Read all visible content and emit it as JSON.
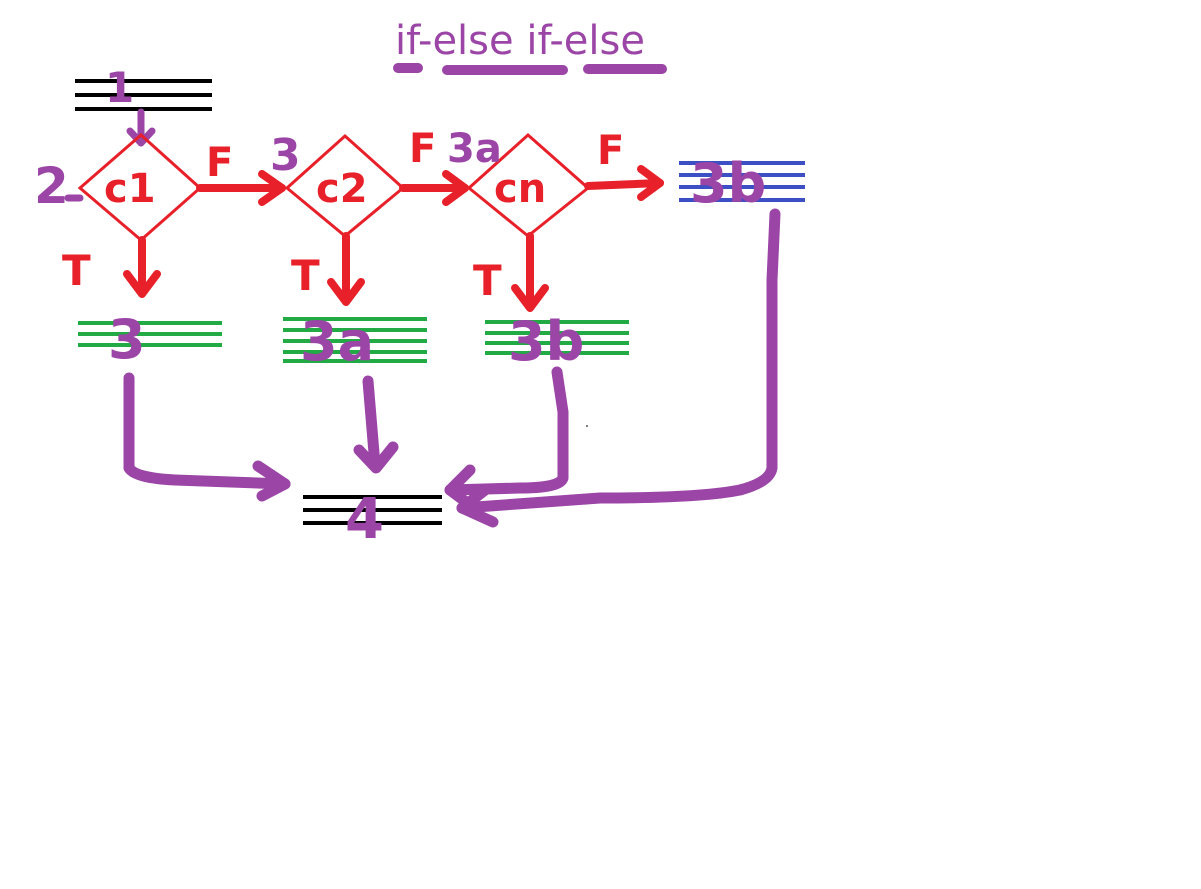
{
  "title": "if-else if-else",
  "colors": {
    "purple": "#9b45a6",
    "red": "#e8202a",
    "green": "#22aa44",
    "blue": "#3d4fc4",
    "black": "#000000"
  },
  "steps": {
    "start": "1",
    "cond_label": "2",
    "c1": "c1",
    "c2": "c2",
    "cn": "cn",
    "c2_num": "3",
    "cn_num": "3a",
    "else_block": "3b",
    "block_c1": "3",
    "block_c2": "3a",
    "block_cn": "3b",
    "end": "4"
  },
  "edges": {
    "true_label": "T",
    "false_label": "F",
    "false_label_cn": "F"
  }
}
